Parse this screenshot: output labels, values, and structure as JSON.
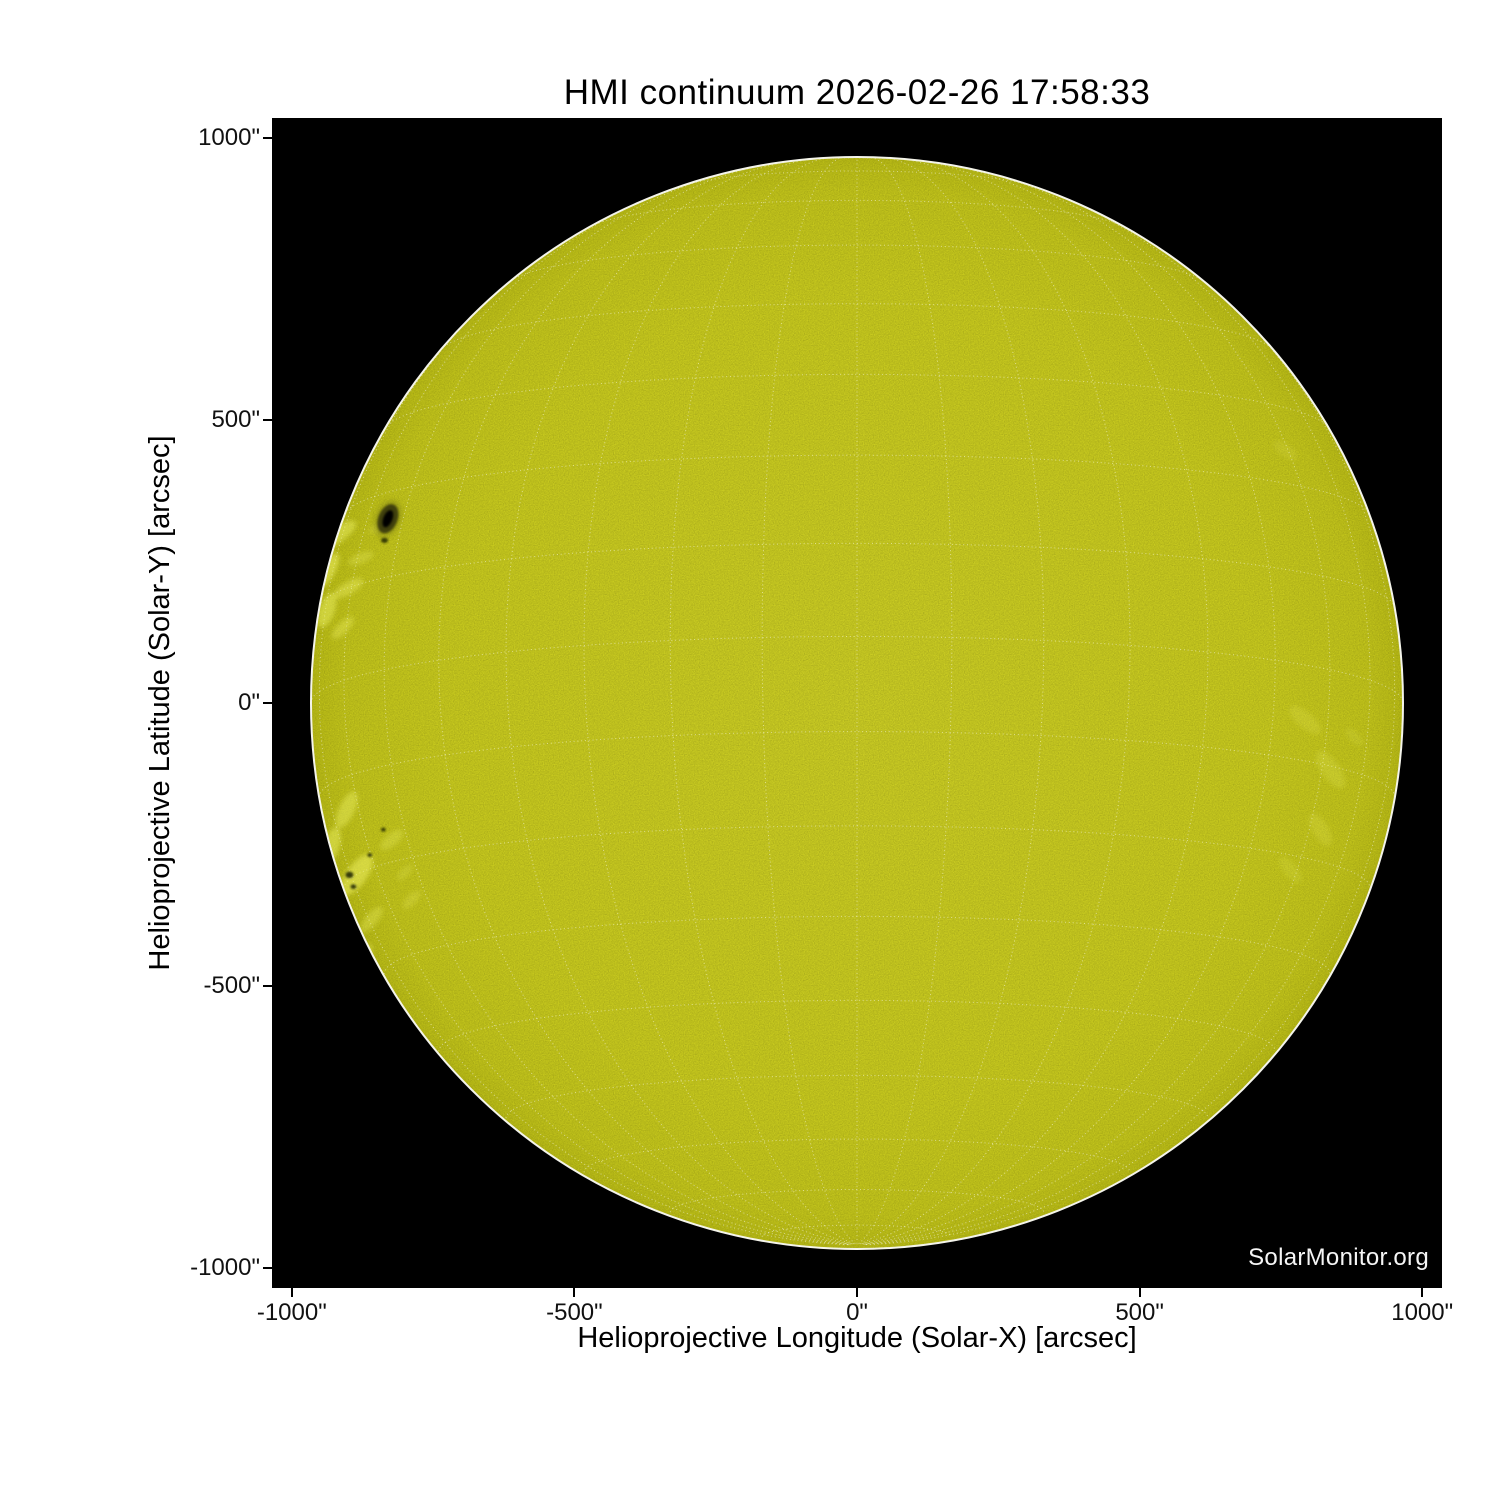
{
  "page": {
    "watermark": "SolarMonitor.org"
  },
  "chart_data": {
    "type": "heatmap",
    "title": "HMI continuum 2026-02-26 17:58:33",
    "instrument": "HMI continuum",
    "datetime": "2026-02-26 17:58:33",
    "xlabel": "Helioprojective Longitude (Solar-X) [arcsec]",
    "ylabel": "Helioprojective Latitude (Solar-Y) [arcsec]",
    "xlim": [
      -1035,
      1035
    ],
    "ylim": [
      -1035,
      1035
    ],
    "x_ticks": {
      "values": [
        -1000,
        -500,
        0,
        500,
        1000
      ],
      "labels": [
        "-1000\"",
        "-500\"",
        "0\"",
        "500\"",
        "1000\""
      ]
    },
    "y_ticks": {
      "values": [
        1000,
        500,
        0,
        -500,
        -1000
      ],
      "labels": [
        "1000\"",
        "500\"",
        "0\"",
        "-500\"",
        "-1000\""
      ]
    },
    "grid_on": true,
    "plot_background": "#000000",
    "colors": {
      "disk": "#c8ca1e",
      "disk_center": "#cbcd24",
      "disk_edge": "#b8ba15",
      "limb_rim": "#f4f4ea",
      "grid": "rgba(255,255,255,0.5)",
      "plage": "#eef163",
      "sunspot_umbra": "#030300",
      "sunspot_penumbra": "#3f4108",
      "watermark_text": "#f5f5f5",
      "axis_text": "#000000"
    },
    "sun": {
      "center_arcsec": [
        0,
        0
      ],
      "radius_arcsec": 966,
      "grid_spacing_deg": 10,
      "b0_deg": -7
    },
    "features": {
      "sunspot": {
        "x": -830,
        "y": 326,
        "umbra_rxy": [
          8,
          16
        ],
        "penumbra_rxy": [
          17,
          27
        ],
        "tilt_deg": 22
      },
      "small_spots_xyr": [
        [
          -836,
          288,
          6
        ],
        [
          -898,
          -304,
          7
        ],
        [
          -891,
          -325,
          5
        ],
        [
          -862,
          -269,
          4
        ],
        [
          -838,
          -224,
          4
        ]
      ],
      "plage_xyrrao": [
        [
          -920,
          297,
          40,
          14,
          -35,
          0.5
        ],
        [
          -935,
          235,
          34,
          12,
          -62,
          0.55
        ],
        [
          -900,
          203,
          30,
          11,
          -30,
          0.42
        ],
        [
          -938,
          164,
          32,
          14,
          -70,
          0.5
        ],
        [
          -910,
          133,
          26,
          10,
          -45,
          0.38
        ],
        [
          -878,
          256,
          24,
          9,
          -22,
          0.3
        ],
        [
          -845,
          310,
          20,
          8,
          -20,
          0.25
        ],
        [
          -903,
          -189,
          35,
          14,
          -65,
          0.45
        ],
        [
          -929,
          -251,
          32,
          14,
          -75,
          0.5
        ],
        [
          -885,
          -304,
          42,
          18,
          -55,
          0.55
        ],
        [
          -921,
          -366,
          32,
          14,
          -75,
          0.5
        ],
        [
          -859,
          -383,
          28,
          11,
          -50,
          0.35
        ],
        [
          -876,
          -454,
          32,
          12,
          -60,
          0.4
        ],
        [
          -823,
          -242,
          25,
          11,
          -40,
          0.3
        ],
        [
          -788,
          -348,
          21,
          9,
          -45,
          0.25
        ],
        [
          -800,
          -300,
          18,
          8,
          -45,
          0.22
        ],
        [
          793,
          -30,
          35,
          14,
          40,
          0.2
        ],
        [
          838,
          -118,
          39,
          16,
          55,
          0.22
        ],
        [
          820,
          -224,
          32,
          14,
          60,
          0.2
        ],
        [
          767,
          -295,
          28,
          12,
          50,
          0.16
        ],
        [
          758,
          447,
          25,
          11,
          35,
          0.14
        ],
        [
          880,
          -60,
          20,
          9,
          45,
          0.15
        ]
      ]
    }
  }
}
